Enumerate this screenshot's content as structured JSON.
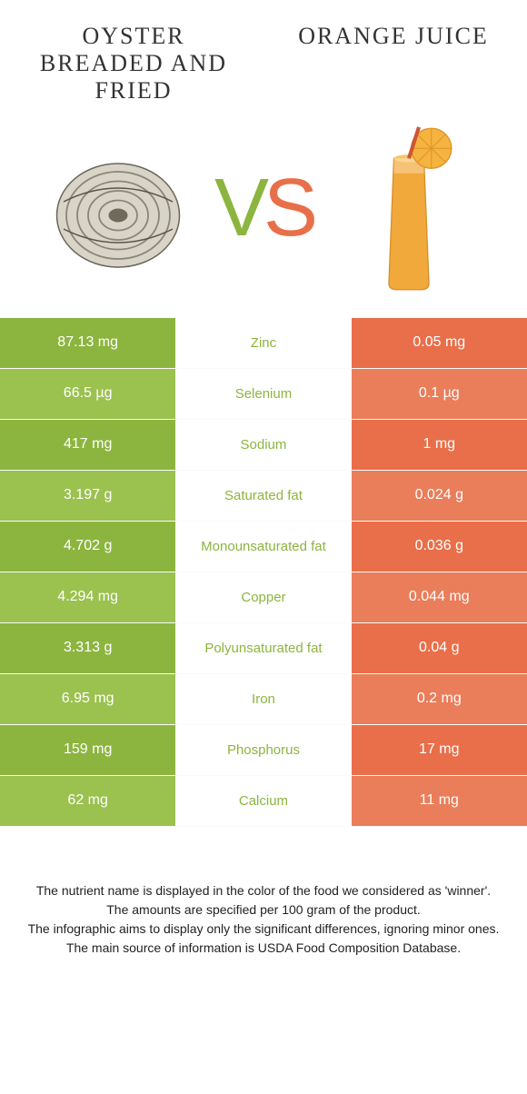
{
  "colors": {
    "left": "#8cb53f",
    "right": "#e86f4a",
    "left_alt": "#9bc14f",
    "right_alt": "#ea7d5a"
  },
  "header": {
    "left_title": "Oyster breaded and fried",
    "right_title": "Orange juice"
  },
  "vs": {
    "left": "V",
    "right": "S"
  },
  "rows": [
    {
      "left": "87.13 mg",
      "nutrient": "Zinc",
      "right": "0.05 mg",
      "winner": "left"
    },
    {
      "left": "66.5 µg",
      "nutrient": "Selenium",
      "right": "0.1 µg",
      "winner": "left"
    },
    {
      "left": "417 mg",
      "nutrient": "Sodium",
      "right": "1 mg",
      "winner": "left"
    },
    {
      "left": "3.197 g",
      "nutrient": "Saturated fat",
      "right": "0.024 g",
      "winner": "left"
    },
    {
      "left": "4.702 g",
      "nutrient": "Monounsaturated fat",
      "right": "0.036 g",
      "winner": "left"
    },
    {
      "left": "4.294 mg",
      "nutrient": "Copper",
      "right": "0.044 mg",
      "winner": "left"
    },
    {
      "left": "3.313 g",
      "nutrient": "Polyunsaturated fat",
      "right": "0.04 g",
      "winner": "left"
    },
    {
      "left": "6.95 mg",
      "nutrient": "Iron",
      "right": "0.2 mg",
      "winner": "left"
    },
    {
      "left": "159 mg",
      "nutrient": "Phosphorus",
      "right": "17 mg",
      "winner": "left"
    },
    {
      "left": "62 mg",
      "nutrient": "Calcium",
      "right": "11 mg",
      "winner": "left"
    }
  ],
  "footer": {
    "line1": "The nutrient name is displayed in the color of the food we considered as 'winner'.",
    "line2": "The amounts are specified per 100 gram of the product.",
    "line3": "The infographic aims to display only the significant differences, ignoring minor ones.",
    "line4": "The main source of information is USDA Food Composition Database."
  }
}
